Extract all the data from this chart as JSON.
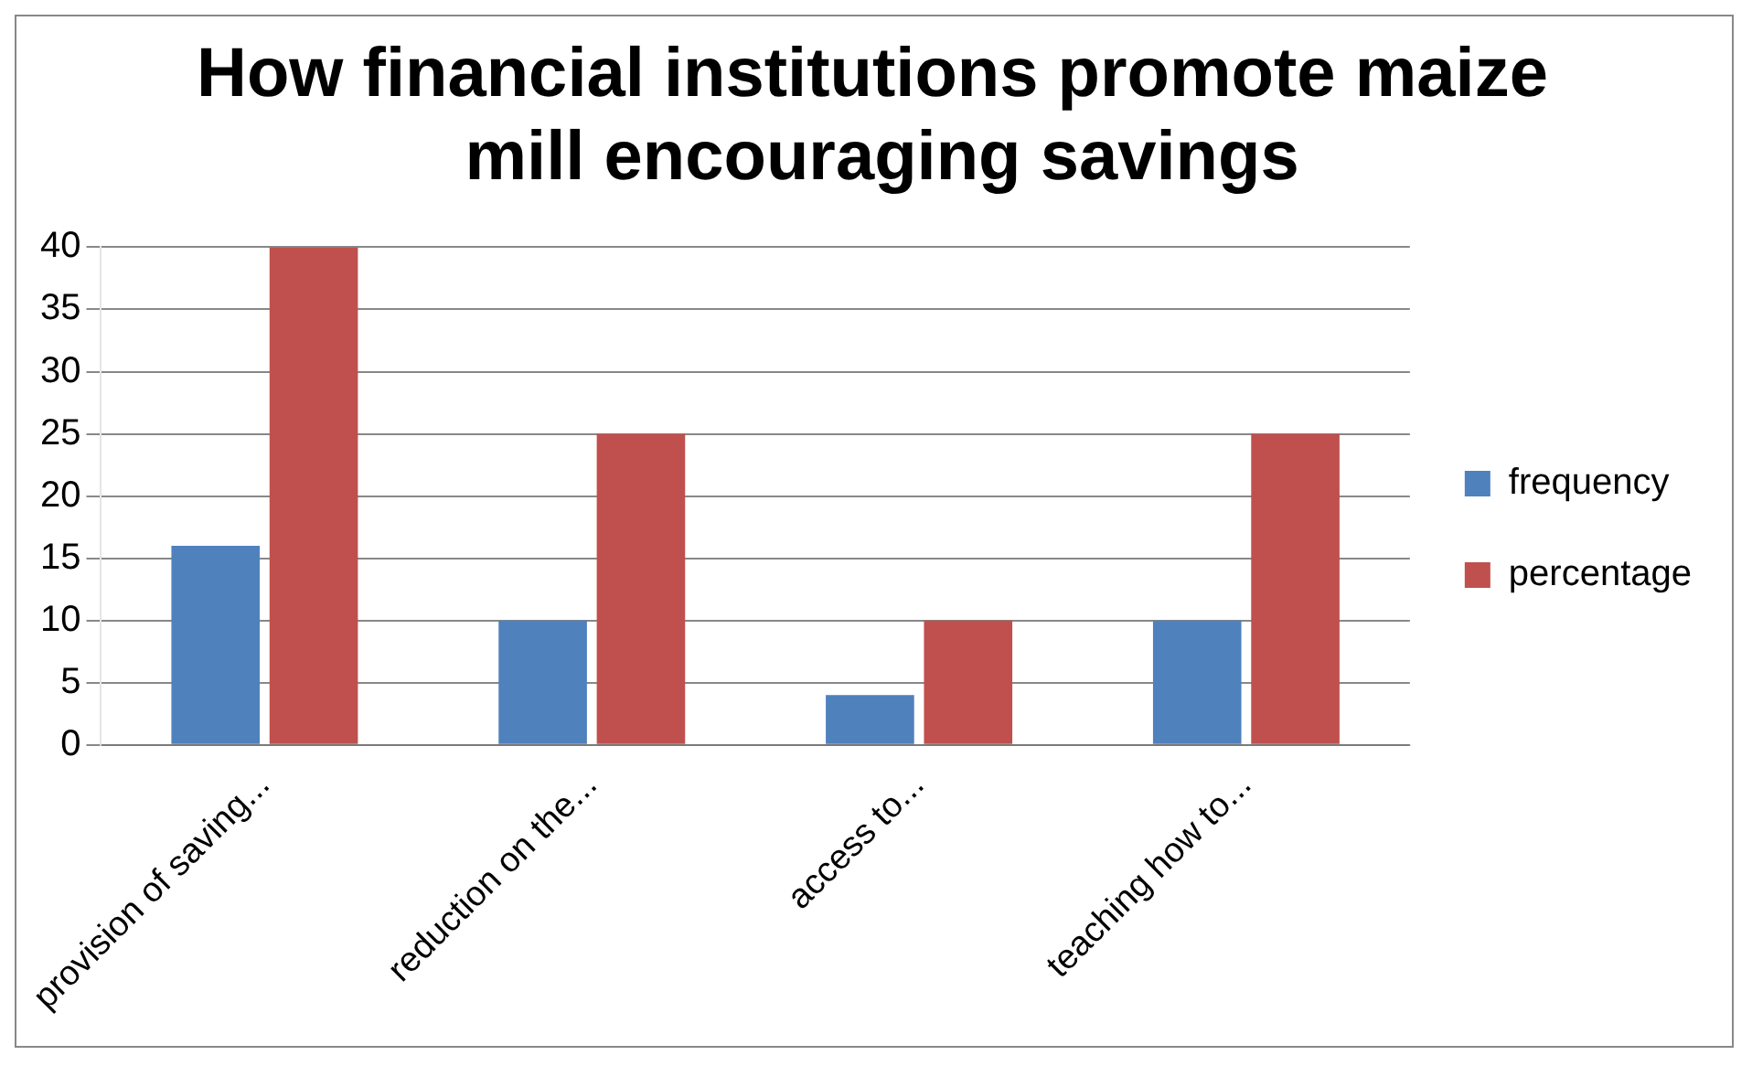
{
  "chart_data": {
    "type": "bar",
    "title": "How financial institutions promote maize  mill encouraging savings",
    "categories": [
      "provision of saving...",
      "reduction on the...",
      "access to...",
      "teaching how to..."
    ],
    "series": [
      {
        "name": "frequency",
        "color": "#4f81bd",
        "values": [
          16,
          10,
          4,
          10
        ]
      },
      {
        "name": "percentage",
        "color": "#c0504d",
        "values": [
          40,
          25,
          10,
          25
        ]
      }
    ],
    "ylim": [
      0,
      40
    ],
    "yticks": [
      0,
      5,
      10,
      15,
      20,
      25,
      30,
      35,
      40
    ],
    "grid": "y",
    "legend": "right"
  }
}
